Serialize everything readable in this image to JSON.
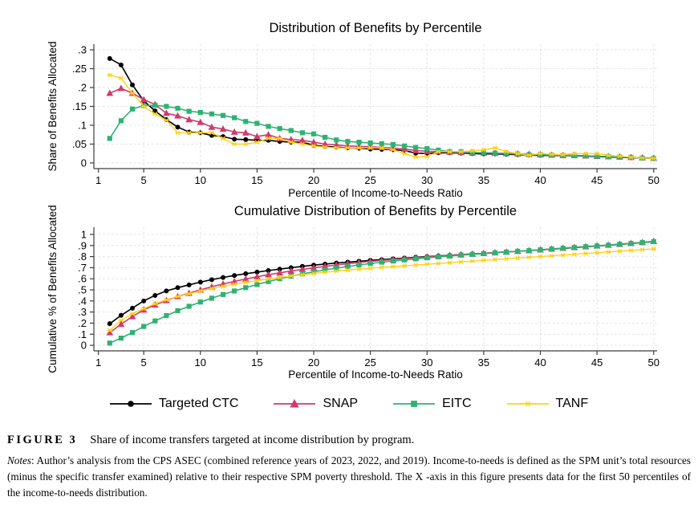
{
  "figure": {
    "caption_label": "FIGURE 3",
    "caption_text": "Share of income transfers targeted at income distribution by program.",
    "notes_prefix": "Notes",
    "notes_text": ": Author’s analysis from the CPS ASEC (combined reference years of 2023, 2022, and 2019). Income-to-needs is defined as the SPM unit’s total resources (minus the specific transfer examined) relative to their respective SPM poverty threshold. The X -axis in this figure presents data for the first 50 percentiles of the income-to-needs distribution."
  },
  "colors": {
    "ctc": "#000000",
    "snap": "#d13a6c",
    "eitc": "#2eb272",
    "tanf": "#ffd117",
    "grid": "#e4e4e4",
    "axis": "#3c3c3c"
  },
  "legend": {
    "position": "bottom",
    "items": [
      {
        "key": "ctc",
        "label": "Targeted CTC",
        "color": "#000000",
        "marker": "circle"
      },
      {
        "key": "snap",
        "label": "SNAP",
        "color": "#d13a6c",
        "marker": "triangle"
      },
      {
        "key": "eitc",
        "label": "EITC",
        "color": "#2eb272",
        "marker": "square"
      },
      {
        "key": "tanf",
        "label": "TANF",
        "color": "#ffd117",
        "marker": "star"
      }
    ]
  },
  "chart_data": [
    {
      "type": "line",
      "title": "Distribution of Benefits by Percentile",
      "xlabel": "Percentile of Income-to-Needs Ratio",
      "ylabel": "Share of Benefits Allocated",
      "grid": true,
      "legend_position": "bottom-shared",
      "xlim": [
        1,
        50
      ],
      "ylim": [
        0,
        0.3
      ],
      "xticks": [
        1,
        5,
        10,
        15,
        20,
        25,
        30,
        35,
        40,
        45,
        50
      ],
      "yticks": [
        {
          "v": 0,
          "label": "0"
        },
        {
          "v": 0.05,
          "label": ".05"
        },
        {
          "v": 0.1,
          "label": ".1"
        },
        {
          "v": 0.15,
          "label": ".15"
        },
        {
          "v": 0.2,
          "label": ".2"
        },
        {
          "v": 0.25,
          "label": ".25"
        },
        {
          "v": 0.3,
          "label": ".3"
        }
      ],
      "x": [
        2,
        3,
        4,
        5,
        6,
        7,
        8,
        9,
        10,
        11,
        12,
        13,
        14,
        15,
        16,
        17,
        18,
        19,
        20,
        21,
        22,
        23,
        24,
        25,
        26,
        27,
        28,
        29,
        30,
        31,
        32,
        33,
        34,
        35,
        36,
        37,
        38,
        39,
        40,
        41,
        42,
        43,
        44,
        45,
        46,
        47,
        48,
        49,
        50
      ],
      "series": [
        {
          "key": "ctc",
          "name": "Targeted CTC",
          "color": "#000000",
          "marker": "circle",
          "values": [
            0.277,
            0.26,
            0.207,
            0.165,
            0.138,
            0.115,
            0.095,
            0.082,
            0.08,
            0.073,
            0.07,
            0.063,
            0.062,
            0.06,
            0.06,
            0.057,
            0.055,
            0.055,
            0.047,
            0.044,
            0.042,
            0.04,
            0.039,
            0.037,
            0.036,
            0.035,
            0.033,
            0.026,
            0.025,
            0.027,
            0.027,
            0.026,
            0.025,
            0.024,
            0.024,
            0.023,
            0.022,
            0.021,
            0.02,
            0.02,
            0.019,
            0.019,
            0.018,
            0.017,
            0.016,
            0.015,
            0.014,
            0.013,
            0.012
          ]
        },
        {
          "key": "snap",
          "name": "SNAP",
          "color": "#d13a6c",
          "marker": "triangle",
          "values": [
            0.185,
            0.198,
            0.185,
            0.168,
            0.155,
            0.132,
            0.125,
            0.115,
            0.108,
            0.095,
            0.09,
            0.082,
            0.08,
            0.07,
            0.075,
            0.065,
            0.062,
            0.06,
            0.055,
            0.05,
            0.048,
            0.045,
            0.044,
            0.043,
            0.041,
            0.039,
            0.037,
            0.033,
            0.031,
            0.03,
            0.029,
            0.028,
            0.027,
            0.027,
            0.026,
            0.025,
            0.024,
            0.023,
            0.022,
            0.021,
            0.02,
            0.02,
            0.019,
            0.018,
            0.017,
            0.016,
            0.015,
            0.014,
            0.013
          ]
        },
        {
          "key": "eitc",
          "name": "EITC",
          "color": "#2eb272",
          "marker": "square",
          "values": [
            0.065,
            0.112,
            0.143,
            0.152,
            0.153,
            0.15,
            0.145,
            0.137,
            0.134,
            0.13,
            0.126,
            0.12,
            0.11,
            0.105,
            0.097,
            0.091,
            0.086,
            0.08,
            0.077,
            0.068,
            0.061,
            0.057,
            0.055,
            0.053,
            0.051,
            0.049,
            0.045,
            0.041,
            0.038,
            0.034,
            0.03,
            0.03,
            0.028,
            0.027,
            0.026,
            0.025,
            0.024,
            0.022,
            0.022,
            0.021,
            0.02,
            0.02,
            0.019,
            0.018,
            0.017,
            0.016,
            0.015,
            0.013,
            0.012
          ]
        },
        {
          "key": "tanf",
          "name": "TANF",
          "color": "#ffd117",
          "marker": "star",
          "values": [
            0.233,
            0.225,
            0.185,
            0.15,
            0.13,
            0.113,
            0.08,
            0.08,
            0.08,
            0.08,
            0.065,
            0.05,
            0.05,
            0.055,
            0.065,
            0.065,
            0.055,
            0.05,
            0.045,
            0.042,
            0.04,
            0.04,
            0.04,
            0.04,
            0.04,
            0.035,
            0.025,
            0.016,
            0.017,
            0.03,
            0.03,
            0.03,
            0.032,
            0.035,
            0.04,
            0.03,
            0.025,
            0.02,
            0.025,
            0.023,
            0.022,
            0.025,
            0.025,
            0.025,
            0.02,
            0.018,
            0.015,
            0.013,
            0.012
          ]
        }
      ]
    },
    {
      "type": "line",
      "title": "Cumulative Distribution of Benefits by Percentile",
      "xlabel": "Percentile of Income-to-Needs Ratio",
      "ylabel": "Cumulative % of Benefits Allocated",
      "grid": true,
      "legend_position": "bottom-shared",
      "xlim": [
        1,
        50
      ],
      "ylim": [
        0,
        1
      ],
      "xticks": [
        1,
        5,
        10,
        15,
        20,
        25,
        30,
        35,
        40,
        45,
        50
      ],
      "yticks": [
        {
          "v": 0,
          "label": "0"
        },
        {
          "v": 0.1,
          "label": ".1"
        },
        {
          "v": 0.2,
          "label": ".2"
        },
        {
          "v": 0.3,
          "label": ".3"
        },
        {
          "v": 0.4,
          "label": ".4"
        },
        {
          "v": 0.5,
          "label": ".5"
        },
        {
          "v": 0.6,
          "label": ".6"
        },
        {
          "v": 0.7,
          "label": ".7"
        },
        {
          "v": 0.8,
          "label": ".8"
        },
        {
          "v": 0.9,
          "label": ".9"
        },
        {
          "v": 1,
          "label": "1"
        }
      ],
      "x": [
        2,
        3,
        4,
        5,
        6,
        7,
        8,
        9,
        10,
        11,
        12,
        13,
        14,
        15,
        16,
        17,
        18,
        19,
        20,
        21,
        22,
        23,
        24,
        25,
        26,
        27,
        28,
        29,
        30,
        31,
        32,
        33,
        34,
        35,
        36,
        37,
        38,
        39,
        40,
        41,
        42,
        43,
        44,
        45,
        46,
        47,
        48,
        49,
        50
      ],
      "series": [
        {
          "key": "ctc",
          "name": "Targeted CTC",
          "color": "#000000",
          "marker": "circle",
          "values": [
            0.195,
            0.27,
            0.335,
            0.4,
            0.45,
            0.49,
            0.52,
            0.545,
            0.57,
            0.592,
            0.612,
            0.63,
            0.646,
            0.66,
            0.674,
            0.687,
            0.7,
            0.712,
            0.723,
            0.733,
            0.742,
            0.75,
            0.758,
            0.766,
            0.773,
            0.78,
            0.787,
            0.794,
            0.8,
            0.806,
            0.812,
            0.818,
            0.824,
            0.83,
            0.836,
            0.842,
            0.848,
            0.854,
            0.86,
            0.867,
            0.874,
            0.881,
            0.888,
            0.895,
            0.902,
            0.91,
            0.918,
            0.926,
            0.935
          ]
        },
        {
          "key": "snap",
          "name": "SNAP",
          "color": "#d13a6c",
          "marker": "triangle",
          "values": [
            0.115,
            0.19,
            0.26,
            0.32,
            0.365,
            0.405,
            0.44,
            0.47,
            0.5,
            0.528,
            0.553,
            0.576,
            0.598,
            0.618,
            0.637,
            0.654,
            0.67,
            0.685,
            0.699,
            0.712,
            0.724,
            0.736,
            0.747,
            0.757,
            0.766,
            0.774,
            0.782,
            0.79,
            0.797,
            0.804,
            0.811,
            0.818,
            0.824,
            0.83,
            0.836,
            0.842,
            0.848,
            0.855,
            0.862,
            0.869,
            0.876,
            0.883,
            0.89,
            0.897,
            0.904,
            0.912,
            0.92,
            0.929,
            0.938
          ]
        },
        {
          "key": "eitc",
          "name": "EITC",
          "color": "#2eb272",
          "marker": "square",
          "values": [
            0.02,
            0.065,
            0.115,
            0.17,
            0.22,
            0.268,
            0.312,
            0.352,
            0.39,
            0.425,
            0.458,
            0.49,
            0.52,
            0.548,
            0.575,
            0.6,
            0.623,
            0.644,
            0.663,
            0.68,
            0.696,
            0.711,
            0.725,
            0.738,
            0.75,
            0.76,
            0.77,
            0.78,
            0.789,
            0.797,
            0.805,
            0.813,
            0.82,
            0.827,
            0.834,
            0.841,
            0.848,
            0.854,
            0.861,
            0.868,
            0.875,
            0.882,
            0.889,
            0.896,
            0.903,
            0.911,
            0.919,
            0.927,
            0.935
          ]
        },
        {
          "key": "tanf",
          "name": "TANF",
          "color": "#ffd117",
          "marker": "star",
          "values": [
            0.135,
            0.225,
            0.285,
            0.33,
            0.375,
            0.41,
            0.44,
            0.465,
            0.49,
            0.512,
            0.532,
            0.55,
            0.567,
            0.583,
            0.598,
            0.612,
            0.625,
            0.637,
            0.648,
            0.659,
            0.669,
            0.678,
            0.687,
            0.695,
            0.703,
            0.71,
            0.717,
            0.724,
            0.731,
            0.738,
            0.745,
            0.752,
            0.759,
            0.766,
            0.773,
            0.78,
            0.787,
            0.794,
            0.8,
            0.807,
            0.814,
            0.821,
            0.828,
            0.835,
            0.842,
            0.849,
            0.856,
            0.863,
            0.87
          ]
        }
      ]
    }
  ]
}
